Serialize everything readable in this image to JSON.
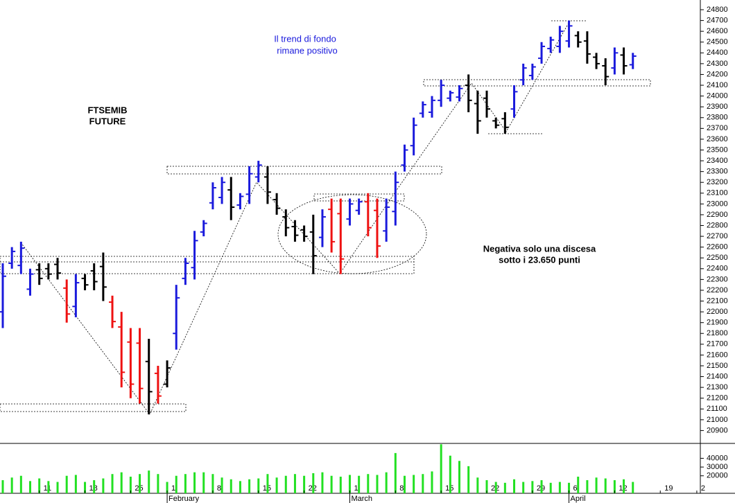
{
  "chart_data": {
    "type": "ohlc",
    "title_lines": [
      "FTSEMIB",
      "FUTURE"
    ],
    "annotations": [
      {
        "lines": [
          "Il trend di fondo",
          "rimane positivo"
        ],
        "color": "#1a1adc"
      },
      {
        "lines": [
          "Negativa solo una discesa",
          "sotto i 23.650 punti"
        ],
        "color": "#000000"
      }
    ],
    "categories": [
      null,
      null,
      null,
      null,
      "11",
      null,
      null,
      null,
      null,
      "18",
      null,
      null,
      null,
      null,
      "25",
      null,
      null,
      null,
      "1",
      null,
      null,
      null,
      null,
      "8",
      null,
      null,
      null,
      null,
      "15",
      null,
      null,
      null,
      null,
      "22",
      null,
      null,
      null,
      null,
      "1",
      null,
      null,
      null,
      null,
      "8",
      null,
      null,
      null,
      null,
      "15",
      null,
      null,
      null,
      null,
      "22",
      null,
      null,
      null,
      null,
      "29",
      null,
      null,
      null,
      "6",
      null,
      null,
      null,
      null,
      "12",
      null,
      null,
      null,
      null,
      "19",
      null,
      null,
      null,
      "2"
    ],
    "month_labels": [
      null,
      null,
      null,
      null,
      null,
      null,
      null,
      null,
      null,
      null,
      null,
      null,
      null,
      null,
      null,
      null,
      null,
      null,
      "February",
      null,
      null,
      null,
      null,
      null,
      null,
      null,
      null,
      null,
      null,
      null,
      null,
      null,
      null,
      null,
      null,
      null,
      null,
      null,
      "March",
      null,
      null,
      null,
      null,
      null,
      null,
      null,
      null,
      null,
      null,
      null,
      null,
      null,
      null,
      null,
      null,
      null,
      null,
      null,
      null,
      null,
      null,
      null,
      "April",
      null,
      null,
      null,
      null,
      null,
      null,
      null,
      null,
      null,
      null,
      null,
      null,
      null,
      null,
      null
    ],
    "open": [
      22000,
      22450,
      22430,
      22210,
      22390,
      22400,
      22440,
      22220,
      22050,
      22310,
      22380,
      22420,
      22090,
      21860,
      21720,
      21710,
      21540,
      21430,
      21330,
      21800,
      22310,
      22410,
      22740,
      23010,
      23060,
      23130,
      22990,
      23090,
      23250,
      23250,
      23040,
      22880,
      22790,
      22760,
      22740,
      22690,
      22950,
      22910,
      22860,
      22940,
      23020,
      22940,
      22750,
      22930,
      23360,
      23540,
      23840,
      23850,
      23960,
      23980,
      23990,
      24100,
      23930,
      23980,
      23770,
      23790,
      23880,
      24150,
      24190,
      24350,
      24440,
      24460,
      24510,
      24560,
      24510,
      24360,
      24280,
      24260,
      24380,
      24290,
      null,
      null,
      null,
      null,
      null,
      null,
      null
    ],
    "high": [
      22450,
      22600,
      22650,
      22400,
      22450,
      22450,
      22500,
      22300,
      22350,
      22350,
      22450,
      22550,
      22150,
      22000,
      21850,
      21850,
      21750,
      21500,
      21550,
      22250,
      22500,
      22750,
      22850,
      23200,
      23250,
      23250,
      23100,
      23350,
      23400,
      23350,
      23100,
      22950,
      22850,
      22800,
      22900,
      22950,
      23050,
      23050,
      23050,
      23050,
      23100,
      23050,
      23050,
      23300,
      23550,
      23800,
      23950,
      24000,
      24150,
      24050,
      24100,
      24200,
      24050,
      24050,
      23800,
      23850,
      24100,
      24300,
      24300,
      24500,
      24550,
      24650,
      24700,
      24600,
      24600,
      24400,
      24350,
      24450,
      24450,
      24400,
      null,
      null,
      null,
      null,
      null,
      null,
      null
    ],
    "low": [
      21850,
      22400,
      22350,
      22150,
      22250,
      22300,
      22300,
      21900,
      21950,
      22200,
      22200,
      22100,
      21850,
      21300,
      21200,
      21150,
      21050,
      21150,
      21300,
      21650,
      22250,
      22300,
      22700,
      22950,
      23000,
      22850,
      22950,
      23000,
      23200,
      23000,
      22900,
      22700,
      22650,
      22650,
      22350,
      22600,
      22550,
      22350,
      22800,
      22900,
      22700,
      22500,
      22650,
      22800,
      23300,
      23450,
      23800,
      23800,
      23900,
      23950,
      23950,
      23850,
      23650,
      23800,
      23700,
      23650,
      23800,
      24100,
      24150,
      24300,
      24400,
      24400,
      24450,
      24450,
      24300,
      24250,
      24100,
      24200,
      24200,
      24250,
      null,
      null,
      null,
      null,
      null,
      null,
      null
    ],
    "close": [
      22330,
      22560,
      22590,
      22350,
      22310,
      22350,
      22360,
      21980,
      22270,
      22250,
      22280,
      22230,
      21910,
      21440,
      21330,
      21290,
      21260,
      21220,
      21480,
      22130,
      22450,
      22660,
      22820,
      23150,
      23200,
      22970,
      23070,
      23280,
      23360,
      23110,
      22960,
      22780,
      22710,
      22700,
      22520,
      22880,
      22650,
      22490,
      23000,
      23020,
      22780,
      22610,
      22970,
      23200,
      23500,
      23730,
      23920,
      23960,
      24100,
      24030,
      24070,
      23960,
      23770,
      23880,
      23730,
      23710,
      24040,
      24260,
      24270,
      24460,
      24520,
      24600,
      24650,
      24500,
      24390,
      24300,
      24180,
      24400,
      24280,
      24370,
      null,
      null,
      null,
      null,
      null,
      null,
      null
    ],
    "bar_colors": [
      "#1a1adc",
      "#1a1adc",
      "#1a1adc",
      "#1a1adc",
      "#000000",
      "#000000",
      "#000000",
      "#ee1111",
      "#1a1adc",
      "#000000",
      "#000000",
      "#000000",
      "#ee1111",
      "#ee1111",
      "#ee1111",
      "#ee1111",
      "#000000",
      "#ee1111",
      "#000000",
      "#1a1adc",
      "#1a1adc",
      "#1a1adc",
      "#1a1adc",
      "#1a1adc",
      "#1a1adc",
      "#000000",
      "#1a1adc",
      "#1a1adc",
      "#1a1adc",
      "#000000",
      "#000000",
      "#000000",
      "#000000",
      "#000000",
      "#000000",
      "#1a1adc",
      "#ee1111",
      "#ee1111",
      "#1a1adc",
      "#1a1adc",
      "#ee1111",
      "#ee1111",
      "#1a1adc",
      "#1a1adc",
      "#1a1adc",
      "#1a1adc",
      "#1a1adc",
      "#1a1adc",
      "#1a1adc",
      "#1a1adc",
      "#1a1adc",
      "#000000",
      "#000000",
      "#000000",
      "#000000",
      "#000000",
      "#1a1adc",
      "#1a1adc",
      "#1a1adc",
      "#1a1adc",
      "#1a1adc",
      "#1a1adc",
      "#1a1adc",
      "#000000",
      "#000000",
      "#000000",
      "#000000",
      "#1a1adc",
      "#000000",
      "#1a1adc",
      null,
      null,
      null,
      null,
      null,
      null,
      null
    ],
    "ylim": [
      20800,
      24890
    ],
    "yticks": [
      20900,
      21000,
      21100,
      21200,
      21300,
      21400,
      21500,
      21600,
      21700,
      21800,
      21900,
      22000,
      22100,
      22200,
      22300,
      22400,
      22500,
      22600,
      22700,
      22800,
      22900,
      23000,
      23100,
      23200,
      23300,
      23400,
      23500,
      23600,
      23700,
      23800,
      23900,
      24000,
      24100,
      24200,
      24300,
      24400,
      24500,
      24600,
      24700,
      24800
    ],
    "volume": {
      "color": "#22e022",
      "values": [
        15000,
        18000,
        20000,
        14000,
        17000,
        14000,
        13000,
        20000,
        21000,
        13000,
        15000,
        17000,
        22000,
        24000,
        19000,
        22000,
        26000,
        22000,
        13000,
        20000,
        22000,
        24000,
        24000,
        22000,
        18000,
        16000,
        14000,
        16000,
        17000,
        22000,
        18000,
        20000,
        22000,
        20000,
        23000,
        24000,
        20000,
        19000,
        21000,
        20000,
        22000,
        21000,
        24000,
        46000,
        20000,
        21000,
        22000,
        25000,
        56000,
        43000,
        37000,
        31000,
        18000,
        15000,
        13000,
        12000,
        16000,
        13000,
        14000,
        15000,
        12000,
        13000,
        12000,
        19000,
        15000,
        18000,
        17000,
        15000,
        16000,
        13000,
        null,
        null,
        null,
        null,
        null,
        null,
        null
      ],
      "ylim": [
        0,
        57000
      ],
      "yticks": [
        20000,
        30000,
        40000
      ]
    }
  }
}
